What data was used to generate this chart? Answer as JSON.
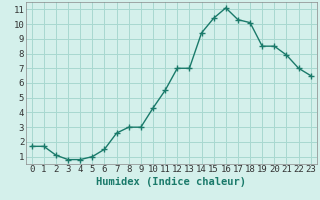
{
  "x": [
    0,
    1,
    2,
    3,
    4,
    5,
    6,
    7,
    8,
    9,
    10,
    11,
    12,
    13,
    14,
    15,
    16,
    17,
    18,
    19,
    20,
    21,
    22,
    23
  ],
  "y": [
    1.7,
    1.7,
    1.1,
    0.8,
    0.8,
    1.0,
    1.5,
    2.6,
    3.0,
    3.0,
    4.3,
    5.5,
    7.0,
    7.0,
    9.4,
    10.4,
    11.1,
    10.3,
    10.1,
    8.5,
    8.5,
    7.9,
    7.0,
    6.5
  ],
  "line_color": "#1a7a6a",
  "marker": "+",
  "marker_size": 4,
  "marker_linewidth": 1.0,
  "bg_color": "#d4f0eb",
  "grid_color": "#a8d8d0",
  "xlabel": "Humidex (Indice chaleur)",
  "xlim": [
    -0.5,
    23.5
  ],
  "ylim": [
    0.5,
    11.5
  ],
  "yticks": [
    1,
    2,
    3,
    4,
    5,
    6,
    7,
    8,
    9,
    10,
    11
  ],
  "xticks": [
    0,
    1,
    2,
    3,
    4,
    5,
    6,
    7,
    8,
    9,
    10,
    11,
    12,
    13,
    14,
    15,
    16,
    17,
    18,
    19,
    20,
    21,
    22,
    23
  ],
  "xlabel_fontsize": 7.5,
  "tick_fontsize": 6.5,
  "linewidth": 1.0
}
